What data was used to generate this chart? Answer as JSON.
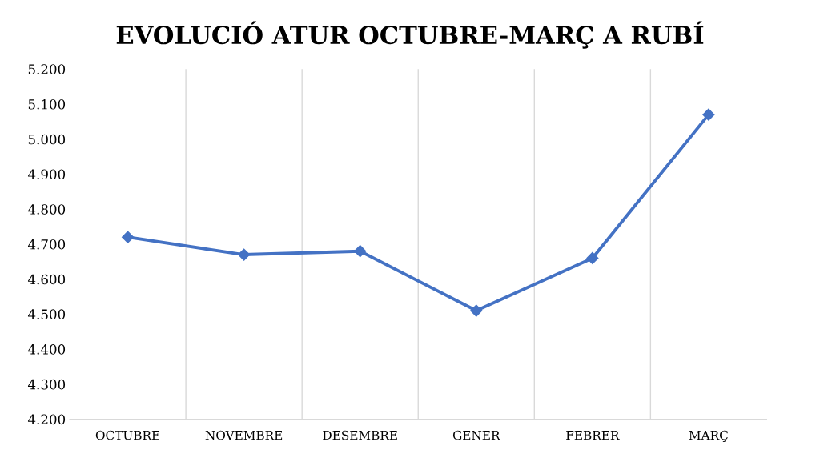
{
  "chart_data": {
    "type": "line",
    "title": "EVOLUCIÓ ATUR OCTUBRE-MARÇ A RUBÍ",
    "categories": [
      "OCTUBRE",
      "NOVEMBRE",
      "DESEMBRE",
      "GENER",
      "FEBRER",
      "MARÇ"
    ],
    "series": [
      {
        "color": "#4472c4",
        "values": [
          4720,
          4670,
          4680,
          4510,
          4660,
          5070
        ]
      }
    ],
    "ylim": [
      4200,
      5200
    ],
    "yticks": [
      {
        "value": 4200,
        "label": "4.200"
      },
      {
        "value": 4300,
        "label": "4.300"
      },
      {
        "value": 4400,
        "label": "4.400"
      },
      {
        "value": 4500,
        "label": "4.500"
      },
      {
        "value": 4600,
        "label": "4.600"
      },
      {
        "value": 4700,
        "label": "4.700"
      },
      {
        "value": 4800,
        "label": "4.800"
      },
      {
        "value": 4900,
        "label": "4.900"
      },
      {
        "value": 5000,
        "label": "5.000"
      },
      {
        "value": 5100,
        "label": "5.100"
      },
      {
        "value": 5200,
        "label": "5.200"
      }
    ],
    "grid": "x",
    "legend": false,
    "marker": "diamond",
    "line_style": "solid"
  }
}
